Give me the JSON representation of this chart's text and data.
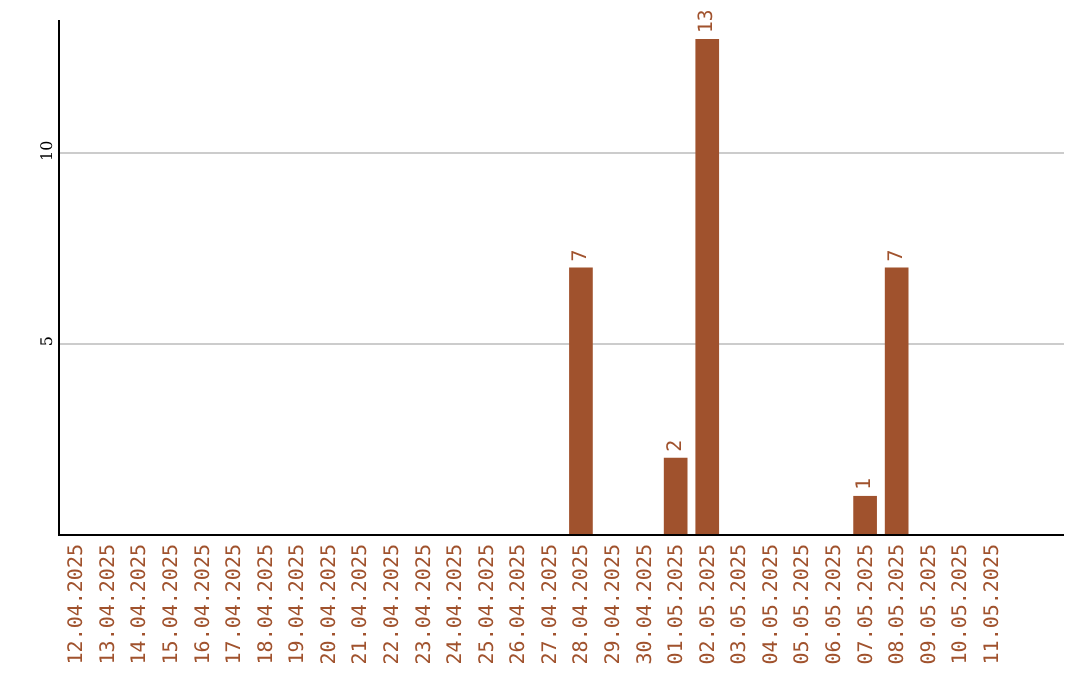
{
  "chart_data": {
    "type": "bar",
    "categories": [
      "12.04.2025",
      "13.04.2025",
      "14.04.2025",
      "15.04.2025",
      "16.04.2025",
      "17.04.2025",
      "18.04.2025",
      "19.04.2025",
      "20.04.2025",
      "21.04.2025",
      "22.04.2025",
      "23.04.2025",
      "24.04.2025",
      "25.04.2025",
      "26.04.2025",
      "27.04.2025",
      "28.04.2025",
      "29.04.2025",
      "30.04.2025",
      "01.05.2025",
      "02.05.2025",
      "03.05.2025",
      "04.05.2025",
      "05.05.2025",
      "06.05.2025",
      "07.05.2025",
      "08.05.2025",
      "09.05.2025",
      "10.05.2025",
      "11.05.2025"
    ],
    "values": [
      0,
      0,
      0,
      0,
      0,
      0,
      0,
      0,
      0,
      0,
      0,
      0,
      0,
      0,
      0,
      0,
      7,
      0,
      0,
      2,
      13,
      0,
      0,
      0,
      0,
      1,
      7,
      0,
      0,
      0
    ],
    "value_labels": [
      null,
      null,
      null,
      null,
      null,
      null,
      null,
      null,
      null,
      null,
      null,
      null,
      null,
      null,
      null,
      null,
      "7",
      null,
      null,
      "2",
      "13",
      null,
      null,
      null,
      null,
      "1",
      "7",
      null,
      null,
      null
    ],
    "color": "#a0522d",
    "ylim": [
      0,
      13.5
    ],
    "yticks": [
      5,
      10
    ],
    "grid": "y",
    "legend": false
  }
}
